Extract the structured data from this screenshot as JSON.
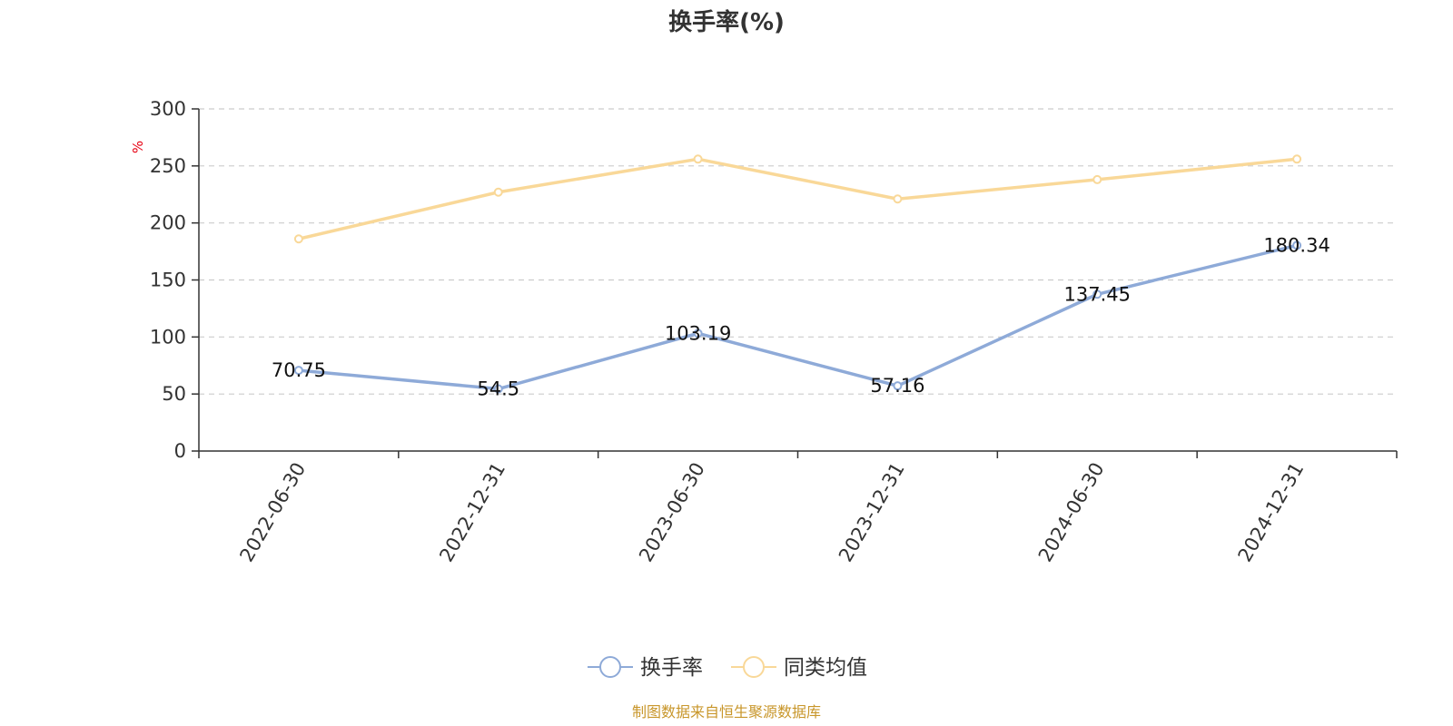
{
  "chart_data": {
    "type": "line",
    "title": "换手率(%)",
    "ylabel": "%",
    "xlabel": "",
    "categories": [
      "2022-06-30",
      "2022-12-31",
      "2023-06-30",
      "2023-12-31",
      "2024-06-30",
      "2024-12-31"
    ],
    "ylim": [
      0,
      300
    ],
    "yticks": [
      0,
      50,
      100,
      150,
      200,
      250,
      300
    ],
    "grid": true,
    "legend_position": "bottom-center",
    "series": [
      {
        "name": "换手率",
        "color": "#8eaad8",
        "values": [
          70.75,
          54.5,
          103.19,
          57.16,
          137.45,
          180.34
        ],
        "labels": [
          "70.75",
          "54.5",
          "103.19",
          "57.16",
          "137.45",
          "180.34"
        ],
        "show_labels": true
      },
      {
        "name": "同类均值",
        "color": "#f9d898",
        "values": [
          186,
          227,
          256,
          221,
          238,
          256
        ],
        "show_labels": false
      }
    ],
    "source": "制图数据来自恒生聚源数据库"
  }
}
